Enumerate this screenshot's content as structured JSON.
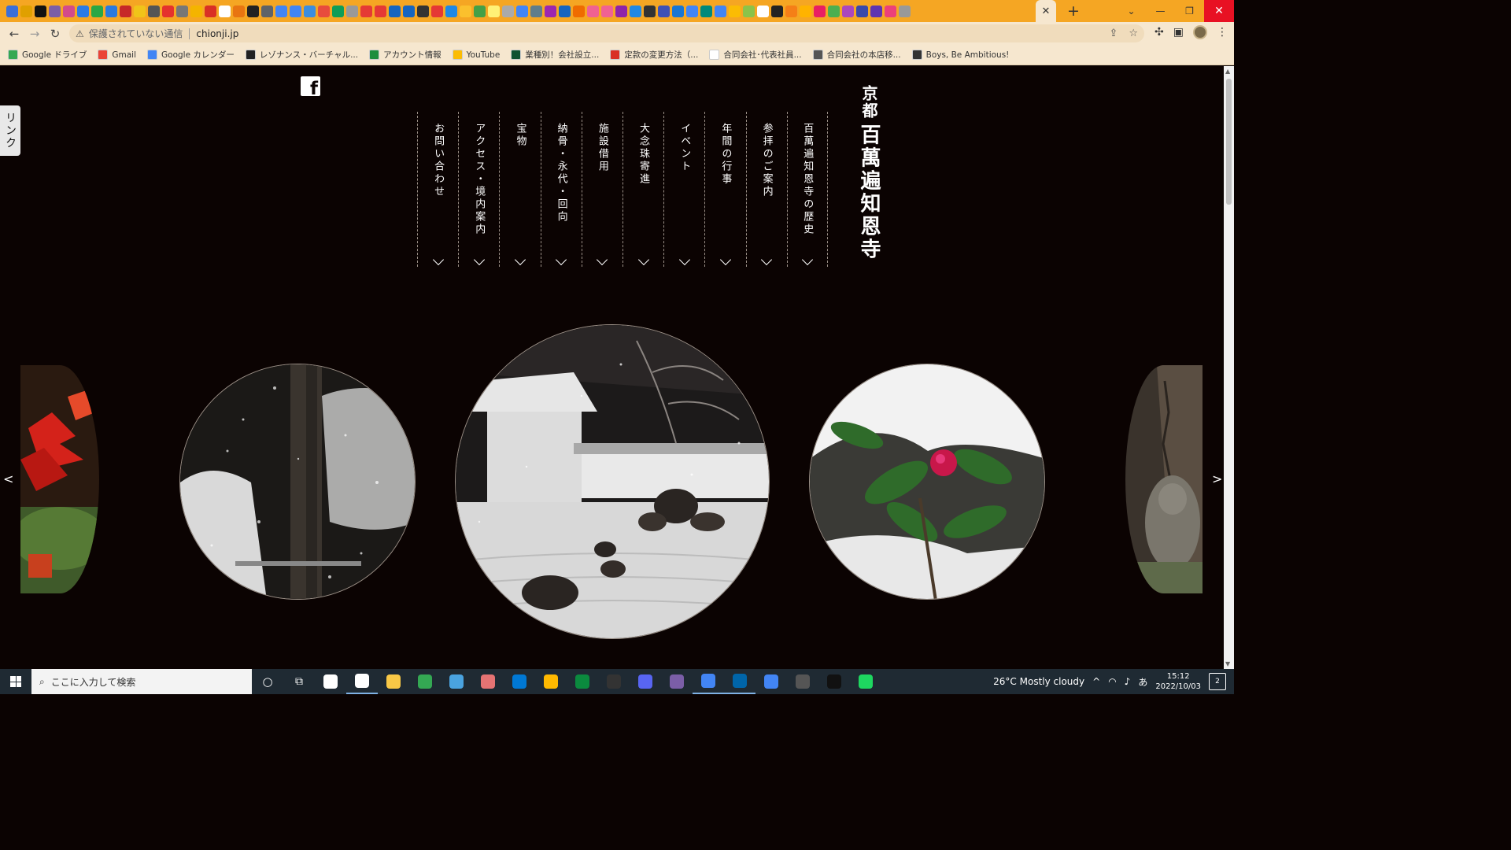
{
  "browser": {
    "active_tab_close": "✕",
    "new_tab": "+",
    "tab_search": "⌄",
    "window_min": "—",
    "window_max": "❐",
    "window_close": "✕",
    "omnibox": {
      "security_label": "保護されていない通信",
      "url": "chionji.jp"
    },
    "bookmarks": [
      {
        "label": "Google ドライブ",
        "color": "#34a853"
      },
      {
        "label": "Gmail",
        "color": "#ea4335"
      },
      {
        "label": "Google カレンダー",
        "color": "#4285f4"
      },
      {
        "label": "レゾナンス・バーチャル...",
        "color": "#222222"
      },
      {
        "label": "アカウント情報",
        "color": "#1e8e3e"
      },
      {
        "label": "YouTube",
        "color": "#fbbc04"
      },
      {
        "label": "業種別！会社設立...",
        "color": "#0f5132"
      },
      {
        "label": "定款の変更方法（...",
        "color": "#d93025"
      },
      {
        "label": "合同会社･代表社員...",
        "color": "#ffffff"
      },
      {
        "label": "合同会社の本店移...",
        "color": "#555555"
      },
      {
        "label": "Boys, Be Ambitious!",
        "color": "#333333"
      }
    ],
    "tab_favicons": [
      "#3b6fd8",
      "#e0a000",
      "#111",
      "#7b5ea7",
      "#d34b8a",
      "#2c7be5",
      "#29a745",
      "#2a7ade",
      "#c62828",
      "#f0c419",
      "#555",
      "#e5322d",
      "#777",
      "#f4b400",
      "#d93025",
      "#fff",
      "#e87511",
      "#222",
      "#5f6368",
      "#4285f4",
      "#4285f4",
      "#3c8dde",
      "#e84c3d",
      "#0f9d58",
      "#999",
      "#e53935",
      "#e53935",
      "#1565c0",
      "#1565c0",
      "#333",
      "#e53935",
      "#1e88e5",
      "#fbc02d",
      "#43a047",
      "#fff176",
      "#aaa",
      "#4285f4",
      "#607d8b",
      "#9c27b0",
      "#1565c0",
      "#ef6c00",
      "#f06292",
      "#f06292",
      "#8e24aa",
      "#1e88e5",
      "#333",
      "#3f51b5",
      "#1976d2",
      "#4285f4",
      "#00897b",
      "#4285f4",
      "#fbbc04",
      "#8bc34a",
      "#fff",
      "#222",
      "#f57f17",
      "#ffb300",
      "#e91e63",
      "#4caf50",
      "#ab47bc",
      "#3949ab",
      "#5e35b1",
      "#ec407a",
      "#999"
    ]
  },
  "page": {
    "link_tab": "リンク",
    "facebook_glyph": "f",
    "site_title": {
      "city": "京都",
      "name": "百萬遍知恩寺"
    },
    "nav": [
      {
        "id": "contact",
        "label": "お問い合わせ"
      },
      {
        "id": "access",
        "label": "アクセス・境内案内"
      },
      {
        "id": "treasures",
        "label": "宝物"
      },
      {
        "id": "nokotsu",
        "label": "納骨・永代・回向"
      },
      {
        "id": "facilities",
        "label": "施設借用"
      },
      {
        "id": "dainenju",
        "label": "大念珠寄進"
      },
      {
        "id": "events",
        "label": "イベント"
      },
      {
        "id": "annual",
        "label": "年間の行事"
      },
      {
        "id": "guide",
        "label": "参拝のご案内"
      },
      {
        "id": "history",
        "label": "百萬遍知恩寺の歴史"
      }
    ],
    "slider_prev": "<",
    "slider_next": ">",
    "slides": [
      {
        "id": "far-left",
        "subject": "red-autumn-maple-photo"
      },
      {
        "id": "left",
        "subject": "snowy-tree-trunk-photo"
      },
      {
        "id": "center",
        "subject": "snow-covered-rock-garden-photo"
      },
      {
        "id": "right",
        "subject": "snow-covered-camellia-photo"
      },
      {
        "id": "far-right",
        "subject": "stone-statue-tree-photo"
      }
    ]
  },
  "taskbar": {
    "search_placeholder": "ここに入力して検索",
    "weather": "26°C  Mostly cloudy",
    "time": "15:12",
    "date": "2022/10/03",
    "ime": "あ",
    "notification_count": "2",
    "apps": [
      "#ffffff",
      "#ffffff",
      "#f9c846",
      "#34a853",
      "#4aa3df",
      "#e57373",
      "#0078d4",
      "#ffb900",
      "#0b8a3e",
      "#333333",
      "#5865f2",
      "#7b5ea7",
      "#4285f4",
      "#0065a9",
      "#4285f4",
      "#555555",
      "#111111",
      "#1ed760"
    ]
  }
}
